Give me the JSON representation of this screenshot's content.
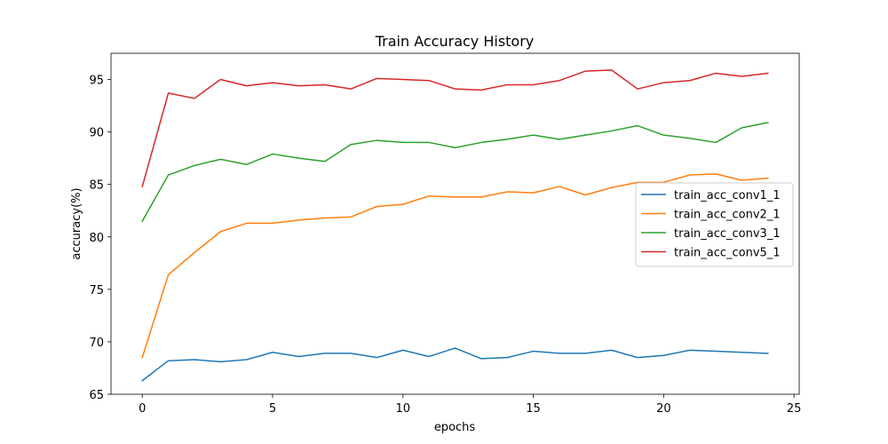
{
  "chart_data": {
    "type": "line",
    "title": "Train Accuracy History",
    "xlabel": "epochs",
    "ylabel": "accuracy(%)",
    "xlim": [
      -1.2,
      25.2
    ],
    "ylim": [
      65,
      97.5
    ],
    "xticks": [
      0,
      5,
      10,
      15,
      20,
      25
    ],
    "yticks": [
      65,
      70,
      75,
      80,
      85,
      90,
      95
    ],
    "grid": false,
    "legend_position": "center-right",
    "x": [
      0,
      1,
      2,
      3,
      4,
      5,
      6,
      7,
      8,
      9,
      10,
      11,
      12,
      13,
      14,
      15,
      16,
      17,
      18,
      19,
      20,
      21,
      22,
      23,
      24
    ],
    "series": [
      {
        "name": "train_acc_conv1_1",
        "color": "#1f77b4",
        "values": [
          66.3,
          68.2,
          68.3,
          68.1,
          68.3,
          69.0,
          68.6,
          68.9,
          68.9,
          68.5,
          69.2,
          68.6,
          69.4,
          68.4,
          68.5,
          69.1,
          68.9,
          68.9,
          69.2,
          68.5,
          68.7,
          69.2,
          69.1,
          69.0,
          68.9
        ]
      },
      {
        "name": "train_acc_conv2_1",
        "color": "#ff7f0e",
        "values": [
          68.5,
          76.4,
          78.5,
          80.5,
          81.3,
          81.3,
          81.6,
          81.8,
          81.9,
          82.9,
          83.1,
          83.9,
          83.8,
          83.8,
          84.3,
          84.2,
          84.8,
          84.0,
          84.7,
          85.2,
          85.2,
          85.9,
          86.0,
          85.4,
          85.6
        ]
      },
      {
        "name": "train_acc_conv3_1",
        "color": "#2ca02c",
        "values": [
          81.5,
          85.9,
          86.8,
          87.4,
          86.9,
          87.9,
          87.5,
          87.2,
          88.8,
          89.2,
          89.0,
          89.0,
          88.5,
          89.0,
          89.3,
          89.7,
          89.3,
          89.7,
          90.1,
          90.6,
          89.7,
          89.4,
          89.0,
          90.4,
          90.9
        ]
      },
      {
        "name": "train_acc_conv5_1",
        "color": "#d62728",
        "values": [
          84.8,
          93.7,
          93.2,
          95.0,
          94.4,
          94.7,
          94.4,
          94.5,
          94.1,
          95.1,
          95.0,
          94.9,
          94.1,
          94.0,
          94.5,
          94.5,
          94.9,
          95.8,
          95.9,
          94.1,
          94.7,
          94.9,
          95.6,
          95.3,
          95.6
        ]
      }
    ]
  }
}
